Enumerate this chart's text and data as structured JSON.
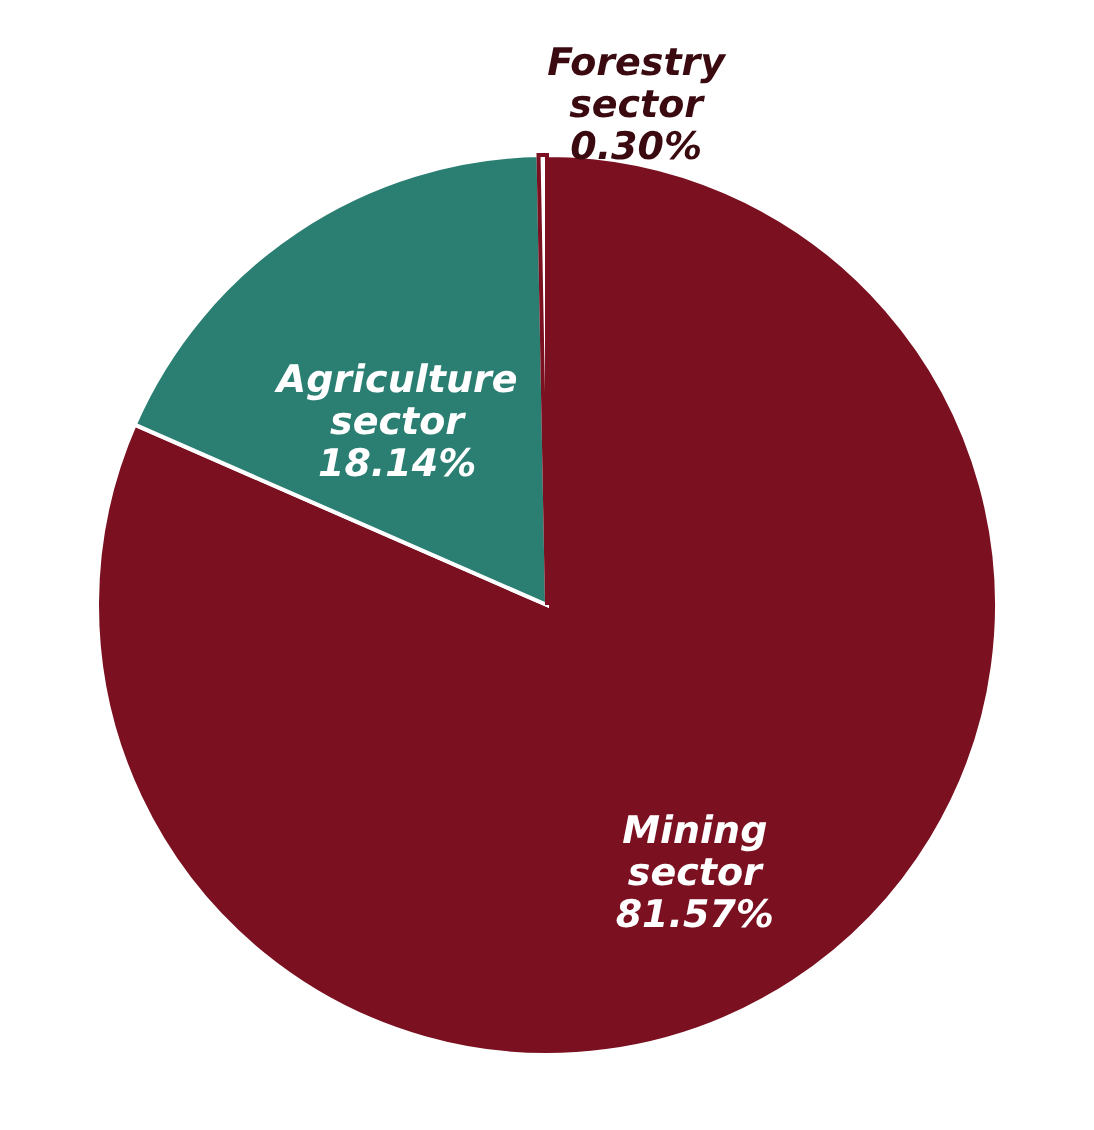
{
  "chart_data": {
    "type": "pie",
    "categories": [
      "Mining sector",
      "Agriculture sector",
      "Forestry sector"
    ],
    "values": [
      81.57,
      18.14,
      0.3
    ],
    "colors": [
      "#7a1020",
      "#2a7f72",
      "#ffffff"
    ],
    "value_labels": [
      "81.57%",
      "18.14%",
      "0.30%"
    ]
  }
}
